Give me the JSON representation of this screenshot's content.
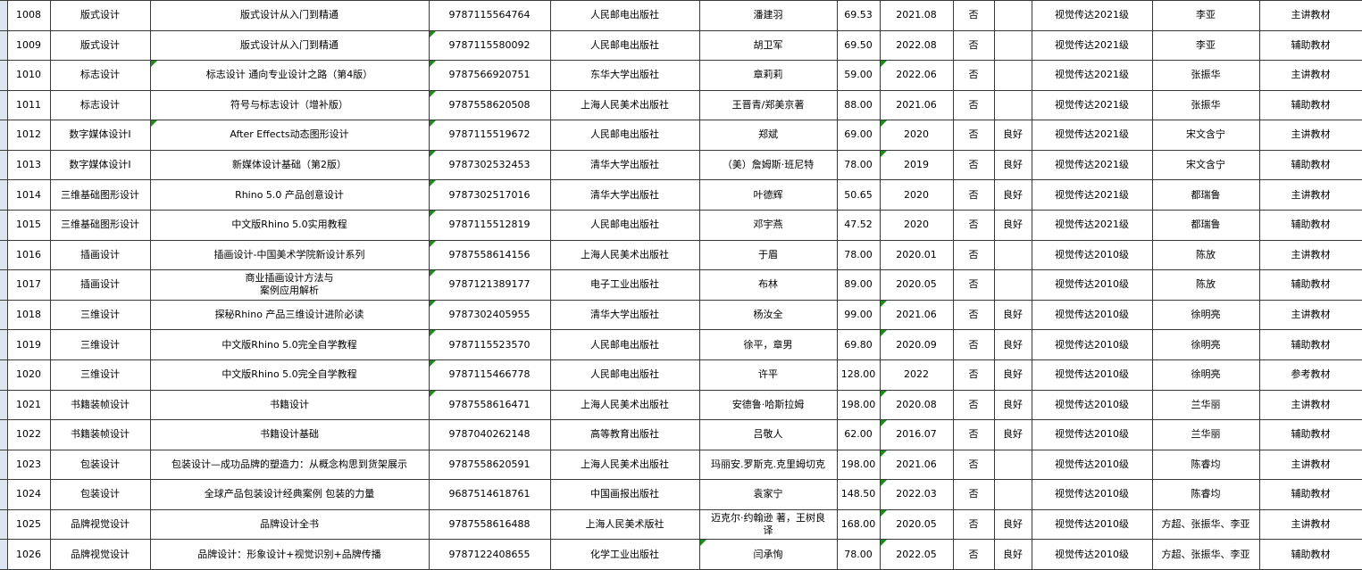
{
  "colors": {
    "grid_border": "#3a3a3a",
    "error_indicator_green": "#1f8b1f",
    "left_gutter_blue": "#dce6f1",
    "background": "#ffffff"
  },
  "table": {
    "column_keys": [
      "gutter",
      "row_id",
      "course",
      "title",
      "isbn",
      "publisher",
      "author",
      "price",
      "date",
      "confirm",
      "condition",
      "class",
      "teacher",
      "material"
    ],
    "rows": [
      {
        "gutter": "",
        "row_id": "1008",
        "course": "版式设计",
        "title": "版式设计从入门到精通",
        "isbn": "9787115564764",
        "publisher": "人民邮电出版社",
        "author": "潘建羽",
        "price": "69.53",
        "date": "2021.08",
        "confirm": "否",
        "condition": "",
        "class": "视觉传达2021级",
        "teacher": "李亚",
        "material": "主讲教材",
        "flags": []
      },
      {
        "gutter": "",
        "row_id": "1009",
        "course": "版式设计",
        "title": "版式设计从入门到精通",
        "isbn": "9787115580092",
        "publisher": "人民邮电出版社",
        "author": "胡卫军",
        "price": "69.50",
        "date": "2022.08",
        "confirm": "否",
        "condition": "",
        "class": "视觉传达2021级",
        "teacher": "李亚",
        "material": "辅助教材",
        "flags": [
          "isbn"
        ]
      },
      {
        "gutter": "",
        "row_id": "1010",
        "course": "标志设计",
        "title": "标志设计 通向专业设计之路（第4版）",
        "isbn": "9787566920751",
        "publisher": "东华大学出版社",
        "author": "章莉莉",
        "price": "59.00",
        "date": "2022.06",
        "confirm": "否",
        "condition": "",
        "class": "视觉传达2021级",
        "teacher": "张振华",
        "material": "主讲教材",
        "flags": [
          "title",
          "isbn",
          "date"
        ]
      },
      {
        "gutter": "",
        "row_id": "1011",
        "course": "标志设计",
        "title": "符号与标志设计（增补版）",
        "isbn": "9787558620508",
        "publisher": "上海人民美术出版社",
        "author": "王晋青/郑美京著",
        "price": "88.00",
        "date": "2021.06",
        "confirm": "否",
        "condition": "",
        "class": "视觉传达2021级",
        "teacher": "张振华",
        "material": "辅助教材",
        "flags": [
          "isbn"
        ]
      },
      {
        "gutter": "",
        "row_id": "1012",
        "course": "数字媒体设计I",
        "title": "After Effects动态图形设计",
        "isbn": "9787115519672",
        "publisher": "人民邮电出版社",
        "author": "郑斌",
        "price": "69.00",
        "date": "2020",
        "confirm": "否",
        "condition": "良好",
        "class": "视觉传达2021级",
        "teacher": "宋文含宁",
        "material": "主讲教材",
        "flags": [
          "title",
          "isbn",
          "date"
        ]
      },
      {
        "gutter": "",
        "row_id": "1013",
        "course": "数字媒体设计I",
        "title": "新媒体设计基础（第2版）",
        "isbn": "9787302532453",
        "publisher": "清华大学出版社",
        "author": "（美）詹姆斯·班尼特",
        "price": "78.00",
        "date": "2019",
        "confirm": "否",
        "condition": "良好",
        "class": "视觉传达2021级",
        "teacher": "宋文含宁",
        "material": "辅助教材",
        "flags": [
          "isbn",
          "date"
        ]
      },
      {
        "gutter": "",
        "row_id": "1014",
        "course": "三维基础图形设计",
        "title": "Rhino 5.0 产品创意设计",
        "isbn": "9787302517016",
        "publisher": "清华大学出版社",
        "author": "叶德辉",
        "price": "50.65",
        "date": "2020",
        "confirm": "否",
        "condition": "良好",
        "class": "视觉传达2021级",
        "teacher": "都瑞鲁",
        "material": "主讲教材",
        "flags": [
          "isbn"
        ]
      },
      {
        "gutter": "",
        "row_id": "1015",
        "course": "三维基础图形设计",
        "title": "中文版Rhino 5.0实用教程",
        "isbn": "9787115512819",
        "publisher": "人民邮电出版社",
        "author": "邓宇燕",
        "price": "47.52",
        "date": "2020",
        "confirm": "否",
        "condition": "良好",
        "class": "视觉传达2021级",
        "teacher": "都瑞鲁",
        "material": "辅助教材",
        "flags": [
          "isbn"
        ]
      },
      {
        "gutter": "",
        "row_id": "1016",
        "course": "插画设计",
        "title": "插画设计-中国美术学院新设计系列",
        "isbn": "9787558614156",
        "publisher": "上海人民美术出版社",
        "author": "于眉",
        "price": "78.00",
        "date": "2020.01",
        "confirm": "否",
        "condition": "",
        "class": "视觉传达2010级",
        "teacher": "陈放",
        "material": "主讲教材",
        "flags": [
          "isbn"
        ]
      },
      {
        "gutter": "",
        "row_id": "1017",
        "course": "插画设计",
        "title": "商业插画设计方法与\n案例应用解析",
        "isbn": "9787121389177",
        "publisher": "电子工业出版社",
        "author": "布林",
        "price": "89.00",
        "date": "2020.05",
        "confirm": "否",
        "condition": "",
        "class": "视觉传达2010级",
        "teacher": "陈放",
        "material": "辅助教材",
        "flags": [
          "isbn"
        ]
      },
      {
        "gutter": "",
        "row_id": "1018",
        "course": "三维设计",
        "title": "探秘Rhino 产品三维设计进阶必读",
        "isbn": "9787302405955",
        "publisher": "清华大学出版社",
        "author": "杨汝全",
        "price": "99.00",
        "date": "2021.06",
        "confirm": "否",
        "condition": "良好",
        "class": "视觉传达2010级",
        "teacher": "徐明亮",
        "material": "主讲教材",
        "flags": [
          "isbn",
          "date"
        ]
      },
      {
        "gutter": "",
        "row_id": "1019",
        "course": "三维设计",
        "title": "中文版Rhino 5.0完全自学教程",
        "isbn": "9787115523570",
        "publisher": "人民邮电出版社",
        "author": "徐平，章男",
        "price": "69.80",
        "date": "2020.09",
        "confirm": "否",
        "condition": "良好",
        "class": "视觉传达2010级",
        "teacher": "徐明亮",
        "material": "辅助教材",
        "flags": [
          "isbn",
          "date"
        ]
      },
      {
        "gutter": "",
        "row_id": "1020",
        "course": "三维设计",
        "title": "中文版Rhino 5.0完全自学教程",
        "isbn": "9787115466778",
        "publisher": "人民邮电出版社",
        "author": "许平",
        "price": "128.00",
        "date": "2022",
        "confirm": "否",
        "condition": "良好",
        "class": "视觉传达2010级",
        "teacher": "徐明亮",
        "material": "参考教材",
        "flags": [
          "isbn"
        ]
      },
      {
        "gutter": "",
        "row_id": "1021",
        "course": "书籍装帧设计",
        "title": "书籍设计",
        "isbn": "9787558616471",
        "publisher": "上海人民美术出版社",
        "author": "安德鲁·哈斯拉姆",
        "price": "198.00",
        "date": "2020.08",
        "confirm": "否",
        "condition": "良好",
        "class": "视觉传达2010级",
        "teacher": "兰华丽",
        "material": "主讲教材",
        "flags": [
          "isbn",
          "date"
        ]
      },
      {
        "gutter": "",
        "row_id": "1022",
        "course": "书籍装帧设计",
        "title": "书籍设计基础",
        "isbn": "9787040262148",
        "publisher": "高等教育出版社",
        "author": "吕敬人",
        "price": "62.00",
        "date": "2016.07",
        "confirm": "否",
        "condition": "良好",
        "class": "视觉传达2010级",
        "teacher": "兰华丽",
        "material": "辅助教材",
        "flags": [
          "date"
        ]
      },
      {
        "gutter": "",
        "row_id": "1023",
        "course": "包装设计",
        "title": "包装设计—成功品牌的塑造力：从概念构思到货架展示",
        "isbn": "9787558620591",
        "publisher": "上海人民美术出版社",
        "author": "玛丽安.罗斯克.克里姆切克",
        "price": "198.00",
        "date": "2021.06",
        "confirm": "否",
        "condition": "",
        "class": "视觉传达2010级",
        "teacher": "陈睿均",
        "material": "主讲教材",
        "flags": [
          "date"
        ]
      },
      {
        "gutter": "",
        "row_id": "1024",
        "course": "包装设计",
        "title": "全球产品包装设计经典案例 包装的力量",
        "isbn": "9687514618761",
        "publisher": "中国画报出版社",
        "author": "袁家宁",
        "price": "148.50",
        "date": "2022.03",
        "confirm": "否",
        "condition": "",
        "class": "视觉传达2010级",
        "teacher": "陈睿均",
        "material": "辅助教材",
        "flags": [
          "date"
        ]
      },
      {
        "gutter": "",
        "row_id": "1025",
        "course": "品牌视觉设计",
        "title": "品牌设计全书",
        "isbn": "9787558616488",
        "publisher": "上海人民美术版社",
        "author": "迈克尔·约翰逊 著，王树良\n译",
        "price": "168.00",
        "date": "2020.05",
        "confirm": "否",
        "condition": "良好",
        "class": "视觉传达2010级",
        "teacher": "方超、张振华、李亚",
        "material": "主讲教材",
        "flags": [
          "date"
        ]
      },
      {
        "gutter": "",
        "row_id": "1026",
        "course": "品牌视觉设计",
        "title": "品牌设计：形象设计+视觉识别+品牌传播",
        "isbn": "9787122408655",
        "publisher": "化学工业出版社",
        "author": "闫承恂",
        "price": "78.00",
        "date": "2022.05",
        "confirm": "否",
        "condition": "良好",
        "class": "视觉传达2010级",
        "teacher": "方超、张振华、李亚",
        "material": "辅助教材",
        "flags": [
          "date",
          "author"
        ]
      }
    ]
  }
}
